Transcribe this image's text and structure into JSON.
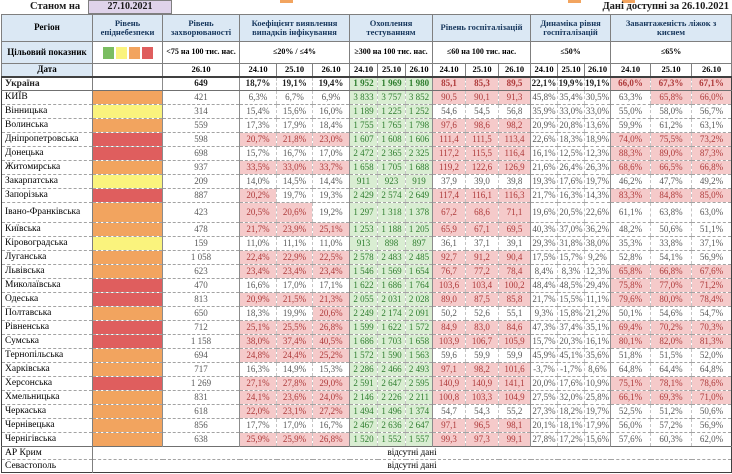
{
  "meta": {
    "as_of_label": "Станом на",
    "as_of_date": "27.10.2021",
    "available_label": "Дані доступні за 26.10.2021"
  },
  "header": {
    "region_label": "Регіон",
    "target_label": "Цільовий показник",
    "date_label": "Дата",
    "groups": [
      {
        "label": "Рівень епіднебезпеки",
        "target": "",
        "dates": []
      },
      {
        "label": "Рівень захворюваності",
        "target": "<75 на 100 тис. нас.",
        "dates": [
          "26.10"
        ]
      },
      {
        "label": "Коефіцієнт виявлення випадків інфікування",
        "target": "≤20% / ≤4%",
        "dates": [
          "24.10",
          "25.10",
          "26.10"
        ]
      },
      {
        "label": "Охоплення тестуванням",
        "target": "≥300 на 100 тис. нас.",
        "dates": [
          "24.10",
          "25.10",
          "26.10"
        ]
      },
      {
        "label": "Рівень госпіталізацій",
        "target": "≤60 на 100 тис. нас.",
        "dates": [
          "24.10",
          "25.10",
          "26.10"
        ]
      },
      {
        "label": "Динаміка рівня госпіталізацій",
        "target": "≤50%",
        "dates": [
          "24.10",
          "25.10",
          "26.10"
        ]
      },
      {
        "label": "Завантаженість ліжок з киснем",
        "target": "≤65%",
        "dates": [
          "24.10",
          "25.10",
          "26.10"
        ]
      }
    ]
  },
  "colors": {
    "level_green": "#7ABD61",
    "level_yellow": "#FAF37D",
    "level_orange": "#F2A45F",
    "level_red": "#DF5E5E",
    "good_bg": "#D9EDD2",
    "good_text": "#2E7D2E",
    "bad_bg": "#F5CACA",
    "bad_text": "#AE3A3A",
    "header_bg": "#DBE8F4",
    "date_box_bg": "#DFD3EA"
  },
  "legend_order": [
    "level_green",
    "level_yellow",
    "level_orange",
    "level_red"
  ],
  "no_data_text": "відсутні дані",
  "rows": [
    {
      "name": "Україна",
      "em": true,
      "level": null,
      "inc": "649",
      "coef": [
        "18,7%",
        "19,1%",
        "19,4%"
      ],
      "coef_r": [
        0,
        0,
        0
      ],
      "test": [
        "1 952",
        "1 969",
        "1 980"
      ],
      "hosp": [
        "85,1",
        "85,3",
        "89,5"
      ],
      "hosp_r": [
        1,
        1,
        1
      ],
      "dyn": [
        "22,1%",
        "19,9%",
        "19,1%"
      ],
      "oxy": [
        "66,0%",
        "67,3%",
        "67,1%"
      ],
      "oxy_r": [
        1,
        1,
        1
      ]
    },
    {
      "name": "КИЇВ",
      "level": "level_orange",
      "inc": "421",
      "coef": [
        "6,3%",
        "6,7%",
        "6,9%"
      ],
      "coef_r": [
        0,
        0,
        0
      ],
      "test": [
        "3 833",
        "3 757",
        "3 852"
      ],
      "hosp": [
        "90,5",
        "90,1",
        "91,3"
      ],
      "hosp_r": [
        1,
        1,
        1
      ],
      "dyn": [
        "45,8%",
        "35,4%",
        "30,5%"
      ],
      "oxy": [
        "63,3%",
        "65,8%",
        "66,0%"
      ],
      "oxy_r": [
        0,
        1,
        1
      ]
    },
    {
      "name": "Вінницька",
      "level": "level_yellow",
      "inc": "314",
      "coef": [
        "15,4%",
        "15,6%",
        "16,0%"
      ],
      "coef_r": [
        0,
        0,
        0
      ],
      "test": [
        "1 189",
        "1 225",
        "1 252"
      ],
      "hosp": [
        "54,6",
        "54,5",
        "56,8"
      ],
      "hosp_r": [
        0,
        0,
        0
      ],
      "dyn": [
        "35,9%",
        "33,0%",
        "33,0%"
      ],
      "oxy": [
        "55,0%",
        "58,0%",
        "56,7%"
      ],
      "oxy_r": [
        0,
        0,
        0
      ]
    },
    {
      "name": "Волинська",
      "level": "level_orange",
      "inc": "559",
      "coef": [
        "17,3%",
        "17,9%",
        "18,4%"
      ],
      "coef_r": [
        0,
        0,
        0
      ],
      "test": [
        "1 755",
        "1 765",
        "1 798"
      ],
      "hosp": [
        "97,6",
        "98,6",
        "98,2"
      ],
      "hosp_r": [
        1,
        1,
        1
      ],
      "dyn": [
        "20,9%",
        "20,8%",
        "13,6%"
      ],
      "oxy": [
        "59,9%",
        "61,2%",
        "63,1%"
      ],
      "oxy_r": [
        0,
        0,
        0
      ]
    },
    {
      "name": "Дніпропетровська",
      "level": "level_red",
      "inc": "598",
      "coef": [
        "20,7%",
        "21,8%",
        "23,0%"
      ],
      "coef_r": [
        1,
        1,
        1
      ],
      "test": [
        "1 607",
        "1 608",
        "1 606"
      ],
      "hosp": [
        "111,4",
        "111,5",
        "113,4"
      ],
      "hosp_r": [
        1,
        1,
        1
      ],
      "dyn": [
        "22,6%",
        "18,3%",
        "18,9%"
      ],
      "oxy": [
        "74,0%",
        "75,5%",
        "73,2%"
      ],
      "oxy_r": [
        1,
        1,
        1
      ]
    },
    {
      "name": "Донецька",
      "level": "level_red",
      "inc": "698",
      "coef": [
        "15,7%",
        "16,7%",
        "17,0%"
      ],
      "coef_r": [
        0,
        0,
        0
      ],
      "test": [
        "2 472",
        "2 365",
        "2 325"
      ],
      "hosp": [
        "117,2",
        "115,5",
        "116,4"
      ],
      "hosp_r": [
        1,
        1,
        1
      ],
      "dyn": [
        "16,1%",
        "12,5%",
        "12,3%"
      ],
      "oxy": [
        "88,3%",
        "89,0%",
        "87,3%"
      ],
      "oxy_r": [
        1,
        1,
        1
      ]
    },
    {
      "name": "Житомирська",
      "level": "level_orange",
      "inc": "937",
      "coef": [
        "33,5%",
        "33,0%",
        "33,7%"
      ],
      "coef_r": [
        1,
        1,
        1
      ],
      "test": [
        "1 658",
        "1 705",
        "1 688"
      ],
      "hosp": [
        "119,2",
        "122,6",
        "126,9"
      ],
      "hosp_r": [
        1,
        1,
        1
      ],
      "dyn": [
        "21,6%",
        "26,4%",
        "26,3%"
      ],
      "oxy": [
        "68,6%",
        "66,5%",
        "66,8%"
      ],
      "oxy_r": [
        1,
        1,
        1
      ]
    },
    {
      "name": "Закарпатська",
      "level": "level_yellow",
      "inc": "209",
      "coef": [
        "14,0%",
        "14,5%",
        "14,4%"
      ],
      "coef_r": [
        0,
        0,
        0
      ],
      "test": [
        "911",
        "923",
        "919"
      ],
      "hosp": [
        "37,9",
        "39,0",
        "39,8"
      ],
      "hosp_r": [
        0,
        0,
        0
      ],
      "dyn": [
        "19,3%",
        "17,6%",
        "19,7%"
      ],
      "oxy": [
        "46,2%",
        "47,7%",
        "49,2%"
      ],
      "oxy_r": [
        0,
        0,
        0
      ]
    },
    {
      "name": "Запорізька",
      "level": "level_red",
      "inc": "887",
      "coef": [
        "20,2%",
        "19,7%",
        "19,3%"
      ],
      "coef_r": [
        1,
        0,
        0
      ],
      "test": [
        "2 429",
        "2 574",
        "2 649"
      ],
      "hosp": [
        "117,4",
        "116,1",
        "116,3"
      ],
      "hosp_r": [
        1,
        1,
        1
      ],
      "dyn": [
        "21,7%",
        "16,3%",
        "14,3%"
      ],
      "oxy": [
        "83,3%",
        "84,8%",
        "85,0%"
      ],
      "oxy_r": [
        1,
        1,
        1
      ]
    },
    {
      "name": "Івано-Франківська",
      "tall": true,
      "level": "level_orange",
      "inc": "423",
      "coef": [
        "20,5%",
        "20,6%",
        "19,2%"
      ],
      "coef_r": [
        1,
        1,
        0
      ],
      "test": [
        "1 297",
        "1 318",
        "1 378"
      ],
      "hosp": [
        "67,2",
        "68,6",
        "71,1"
      ],
      "hosp_r": [
        1,
        1,
        1
      ],
      "dyn": [
        "19,6%",
        "20,5%",
        "22,6%"
      ],
      "oxy": [
        "61,1%",
        "63,8%",
        "63,0%"
      ],
      "oxy_r": [
        0,
        0,
        0
      ]
    },
    {
      "name": "Київська",
      "level": "level_orange",
      "inc": "478",
      "coef": [
        "21,7%",
        "23,9%",
        "25,1%"
      ],
      "coef_r": [
        1,
        1,
        1
      ],
      "test": [
        "1 253",
        "1 188",
        "1 205"
      ],
      "hosp": [
        "65,9",
        "67,1",
        "69,5"
      ],
      "hosp_r": [
        1,
        1,
        1
      ],
      "dyn": [
        "40,3%",
        "37,0%",
        "36,2%"
      ],
      "oxy": [
        "48,2%",
        "50,6%",
        "51,1%"
      ],
      "oxy_r": [
        0,
        0,
        0
      ]
    },
    {
      "name": "Кіровоградська",
      "level": "level_yellow",
      "inc": "159",
      "coef": [
        "11,0%",
        "11,1%",
        "11,0%"
      ],
      "coef_r": [
        0,
        0,
        0
      ],
      "test": [
        "913",
        "898",
        "897"
      ],
      "hosp": [
        "36,1",
        "37,1",
        "39,1"
      ],
      "hosp_r": [
        0,
        0,
        0
      ],
      "dyn": [
        "29,3%",
        "31,8%",
        "38,0%"
      ],
      "oxy": [
        "35,3%",
        "33,8%",
        "37,1%"
      ],
      "oxy_r": [
        0,
        0,
        0
      ]
    },
    {
      "name": "Луганська",
      "level": "level_orange",
      "inc": "1 058",
      "coef": [
        "22,4%",
        "22,9%",
        "22,5%"
      ],
      "coef_r": [
        1,
        1,
        1
      ],
      "test": [
        "2 578",
        "2 483",
        "2 485"
      ],
      "hosp": [
        "92,7",
        "91,2",
        "90,4"
      ],
      "hosp_r": [
        1,
        1,
        1
      ],
      "dyn": [
        "17,5%",
        "15,7%",
        "9,2%"
      ],
      "oxy": [
        "52,8%",
        "54,1%",
        "56,9%"
      ],
      "oxy_r": [
        0,
        0,
        0
      ]
    },
    {
      "name": "Львівська",
      "level": "level_orange",
      "inc": "623",
      "coef": [
        "23,4%",
        "23,4%",
        "23,4%"
      ],
      "coef_r": [
        1,
        1,
        1
      ],
      "test": [
        "1 546",
        "1 569",
        "1 654"
      ],
      "hosp": [
        "76,7",
        "77,2",
        "78,4"
      ],
      "hosp_r": [
        1,
        1,
        1
      ],
      "dyn": [
        "8,4%",
        "8,3%",
        "12,3%"
      ],
      "oxy": [
        "65,8%",
        "66,8%",
        "67,6%"
      ],
      "oxy_r": [
        1,
        1,
        1
      ]
    },
    {
      "name": "Миколаївська",
      "level": "level_red",
      "inc": "470",
      "coef": [
        "16,6%",
        "17,0%",
        "17,1%"
      ],
      "coef_r": [
        0,
        0,
        0
      ],
      "test": [
        "1 622",
        "1 686",
        "1 764"
      ],
      "hosp": [
        "103,6",
        "103,4",
        "100,2"
      ],
      "hosp_r": [
        1,
        1,
        1
      ],
      "dyn": [
        "48,4%",
        "48,5%",
        "29,4%"
      ],
      "oxy": [
        "75,8%",
        "77,0%",
        "71,2%"
      ],
      "oxy_r": [
        1,
        1,
        1
      ]
    },
    {
      "name": "Одеська",
      "level": "level_red",
      "inc": "813",
      "coef": [
        "20,9%",
        "21,5%",
        "21,3%"
      ],
      "coef_r": [
        1,
        1,
        1
      ],
      "test": [
        "2 055",
        "2 031",
        "2 028"
      ],
      "hosp": [
        "89,0",
        "87,5",
        "85,8"
      ],
      "hosp_r": [
        1,
        1,
        1
      ],
      "dyn": [
        "21,7%",
        "15,5%",
        "11,1%"
      ],
      "oxy": [
        "79,6%",
        "80,0%",
        "78,4%"
      ],
      "oxy_r": [
        1,
        1,
        1
      ]
    },
    {
      "name": "Полтавська",
      "level": "level_orange",
      "inc": "650",
      "coef": [
        "18,3%",
        "19,9%",
        "20,6%"
      ],
      "coef_r": [
        0,
        0,
        1
      ],
      "test": [
        "2 249",
        "2 174",
        "2 091"
      ],
      "hosp": [
        "50,2",
        "52,6",
        "55,1"
      ],
      "hosp_r": [
        0,
        0,
        0
      ],
      "dyn": [
        "9,3%",
        "15,8%",
        "21,2%"
      ],
      "oxy": [
        "50,1%",
        "54,6%",
        "54,7%"
      ],
      "oxy_r": [
        0,
        0,
        0
      ]
    },
    {
      "name": "Рівненська",
      "level": "level_red",
      "inc": "712",
      "coef": [
        "25,1%",
        "25,5%",
        "26,8%"
      ],
      "coef_r": [
        1,
        1,
        1
      ],
      "test": [
        "1 599",
        "1 622",
        "1 572"
      ],
      "hosp": [
        "84,9",
        "83,0",
        "84,6"
      ],
      "hosp_r": [
        1,
        1,
        1
      ],
      "dyn": [
        "47,3%",
        "37,4%",
        "35,1%"
      ],
      "oxy": [
        "69,4%",
        "70,2%",
        "70,3%"
      ],
      "oxy_r": [
        1,
        1,
        1
      ]
    },
    {
      "name": "Сумська",
      "level": "level_red",
      "inc": "1 158",
      "coef": [
        "38,0%",
        "37,4%",
        "40,5%"
      ],
      "coef_r": [
        1,
        1,
        1
      ],
      "test": [
        "1 686",
        "1 703",
        "1 658"
      ],
      "hosp": [
        "103,9",
        "106,7",
        "105,9"
      ],
      "hosp_r": [
        1,
        1,
        1
      ],
      "dyn": [
        "15,7%",
        "20,3%",
        "16,1%"
      ],
      "oxy": [
        "80,1%",
        "82,0%",
        "81,3%"
      ],
      "oxy_r": [
        1,
        1,
        1
      ]
    },
    {
      "name": "Тернопільська",
      "level": "level_orange",
      "inc": "694",
      "coef": [
        "24,8%",
        "24,4%",
        "25,2%"
      ],
      "coef_r": [
        1,
        1,
        1
      ],
      "test": [
        "1 572",
        "1 590",
        "1 563"
      ],
      "hosp": [
        "59,6",
        "59,9",
        "59,9"
      ],
      "hosp_r": [
        0,
        0,
        0
      ],
      "dyn": [
        "45,9%",
        "45,1%",
        "35,6%"
      ],
      "oxy": [
        "51,8%",
        "51,5%",
        "52,0%"
      ],
      "oxy_r": [
        0,
        0,
        0
      ]
    },
    {
      "name": "Харківська",
      "level": "level_orange",
      "inc": "717",
      "coef": [
        "16,3%",
        "14,9%",
        "15,3%"
      ],
      "coef_r": [
        0,
        0,
        0
      ],
      "test": [
        "2 286",
        "2 466",
        "2 493"
      ],
      "hosp": [
        "97,1",
        "98,2",
        "101,6"
      ],
      "hosp_r": [
        1,
        1,
        1
      ],
      "dyn": [
        "-3,7%",
        "-1,7%",
        "8,6%"
      ],
      "oxy": [
        "64,8%",
        "64,4%",
        "64,8%"
      ],
      "oxy_r": [
        0,
        0,
        0
      ]
    },
    {
      "name": "Херсонська",
      "level": "level_red",
      "inc": "1 269",
      "coef": [
        "27,1%",
        "27,8%",
        "29,0%"
      ],
      "coef_r": [
        1,
        1,
        1
      ],
      "test": [
        "2 591",
        "2 647",
        "2 595"
      ],
      "hosp": [
        "140,9",
        "140,9",
        "141,1"
      ],
      "hosp_r": [
        1,
        1,
        1
      ],
      "dyn": [
        "20,0%",
        "17,6%",
        "10,9%"
      ],
      "oxy": [
        "75,1%",
        "78,1%",
        "78,6%"
      ],
      "oxy_r": [
        1,
        1,
        1
      ]
    },
    {
      "name": "Хмельницька",
      "level": "level_orange",
      "inc": "831",
      "coef": [
        "24,1%",
        "23,6%",
        "24,0%"
      ],
      "coef_r": [
        1,
        1,
        1
      ],
      "test": [
        "2 146",
        "2 226",
        "2 211"
      ],
      "hosp": [
        "100,8",
        "103,3",
        "104,9"
      ],
      "hosp_r": [
        1,
        1,
        1
      ],
      "dyn": [
        "27,5%",
        "32,0%",
        "25,8%"
      ],
      "oxy": [
        "66,1%",
        "69,3%",
        "71,0%"
      ],
      "oxy_r": [
        1,
        1,
        1
      ]
    },
    {
      "name": "Черкаська",
      "level": "level_orange",
      "inc": "618",
      "coef": [
        "22,0%",
        "23,1%",
        "27,2%"
      ],
      "coef_r": [
        1,
        1,
        1
      ],
      "test": [
        "1 494",
        "1 496",
        "1 374"
      ],
      "hosp": [
        "54,7",
        "54,3",
        "55,2"
      ],
      "hosp_r": [
        0,
        0,
        0
      ],
      "dyn": [
        "27,3%",
        "18,2%",
        "19,7%"
      ],
      "oxy": [
        "52,5%",
        "51,2%",
        "50,6%"
      ],
      "oxy_r": [
        0,
        0,
        0
      ]
    },
    {
      "name": "Чернівецька",
      "level": "level_orange",
      "inc": "856",
      "coef": [
        "17,7%",
        "17,0%",
        "16,7%"
      ],
      "coef_r": [
        0,
        0,
        0
      ],
      "test": [
        "2 467",
        "2 636",
        "2 647"
      ],
      "hosp": [
        "97,1",
        "96,5",
        "98,1"
      ],
      "hosp_r": [
        1,
        1,
        1
      ],
      "dyn": [
        "20,1%",
        "18,1%",
        "17,9%"
      ],
      "oxy": [
        "56,0%",
        "57,2%",
        "56,9%"
      ],
      "oxy_r": [
        0,
        0,
        0
      ]
    },
    {
      "name": "Чернігівська",
      "level": "level_orange",
      "inc": "638",
      "coef": [
        "25,9%",
        "25,9%",
        "26,8%"
      ],
      "coef_r": [
        1,
        1,
        1
      ],
      "test": [
        "1 520",
        "1 552",
        "1 557"
      ],
      "hosp": [
        "99,3",
        "97,3",
        "99,1"
      ],
      "hosp_r": [
        1,
        1,
        1
      ],
      "dyn": [
        "27,8%",
        "17,2%",
        "15,6%"
      ],
      "oxy": [
        "57,6%",
        "60,3%",
        "62,0%"
      ],
      "oxy_r": [
        0,
        0,
        0
      ]
    },
    {
      "name": "АР Крим",
      "no_data": true,
      "sect": true
    },
    {
      "name": "Севастополь",
      "no_data": true
    }
  ]
}
